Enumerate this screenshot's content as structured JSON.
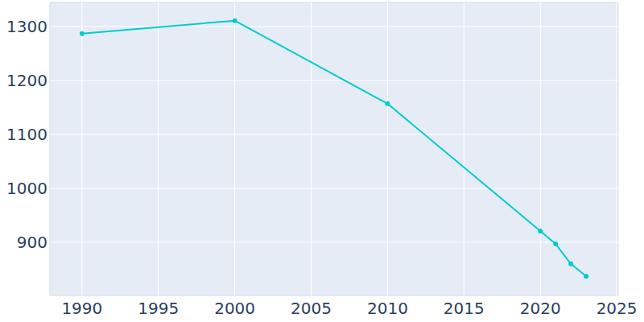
{
  "chart_data": {
    "type": "line",
    "x": [
      1990,
      2000,
      2010,
      2020,
      2021,
      2022,
      2023
    ],
    "values": [
      1287,
      1311,
      1157,
      921,
      897,
      860,
      837
    ],
    "color": "#00cccc",
    "marker": "circle",
    "xlim": [
      1987.9,
      2025.1
    ],
    "xticks": [
      1990,
      1995,
      2000,
      2005,
      2010,
      2015,
      2020,
      2025
    ],
    "ylim": [
      801.5,
      1344.8
    ],
    "yticks": [
      900,
      1000,
      1100,
      1200,
      1300
    ],
    "grid": true
  }
}
